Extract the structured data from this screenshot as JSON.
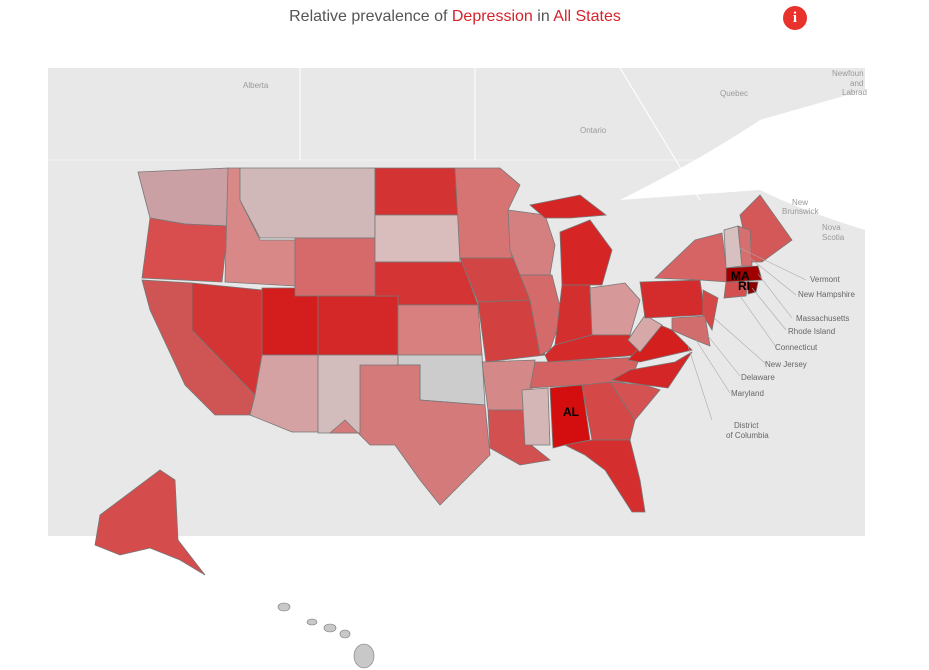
{
  "header": {
    "prefix": "Relative prevalence of",
    "condition": "Depression",
    "joiner": "in",
    "region": "All States",
    "info_icon": "i"
  },
  "map": {
    "region_labels": [
      "Alberta",
      "Quebec",
      "Ontario",
      "New",
      "Brunswick",
      "Nova",
      "Scotia",
      "Newfoun",
      "and",
      "Labrad"
    ],
    "state_labels": [
      "MA",
      "RI",
      "AL"
    ],
    "callouts": [
      "Vermont",
      "New Hampshire",
      "Massachusetts",
      "Rhode Island",
      "Connecticut",
      "New Jersey",
      "Delaware",
      "Maryland",
      "District",
      "of Columbia"
    ]
  }
}
